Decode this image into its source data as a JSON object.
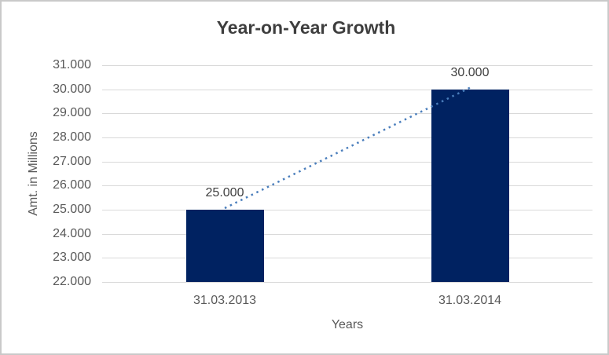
{
  "chart_data": {
    "type": "bar",
    "title": "Year-on-Year Growth",
    "xlabel": "Years",
    "ylabel": "Amt. in Millions",
    "categories": [
      "31.03.2013",
      "31.03.2014"
    ],
    "values": [
      25000,
      30000
    ],
    "value_labels": [
      "25.000",
      "30.000"
    ],
    "y_ticks": [
      22000,
      23000,
      24000,
      25000,
      26000,
      27000,
      28000,
      29000,
      30000,
      31000
    ],
    "y_tick_labels": [
      "22.000",
      "23.000",
      "24.000",
      "25.000",
      "26.000",
      "27.000",
      "28.000",
      "29.000",
      "30.000",
      "31.000"
    ],
    "ylim": [
      22000,
      31000
    ],
    "grid": "horizontal-only",
    "legend": "none",
    "trendline": {
      "style": "dotted",
      "connects": "bar tops",
      "color": "#4a7ebc"
    },
    "colors": {
      "bar": "#002261",
      "gridline": "#d9d9d9",
      "title_text": "#3e3e3e",
      "axis_text": "#595959",
      "data_label_text": "#404040",
      "border": "#c9c9c9",
      "background": "#ffffff"
    }
  }
}
